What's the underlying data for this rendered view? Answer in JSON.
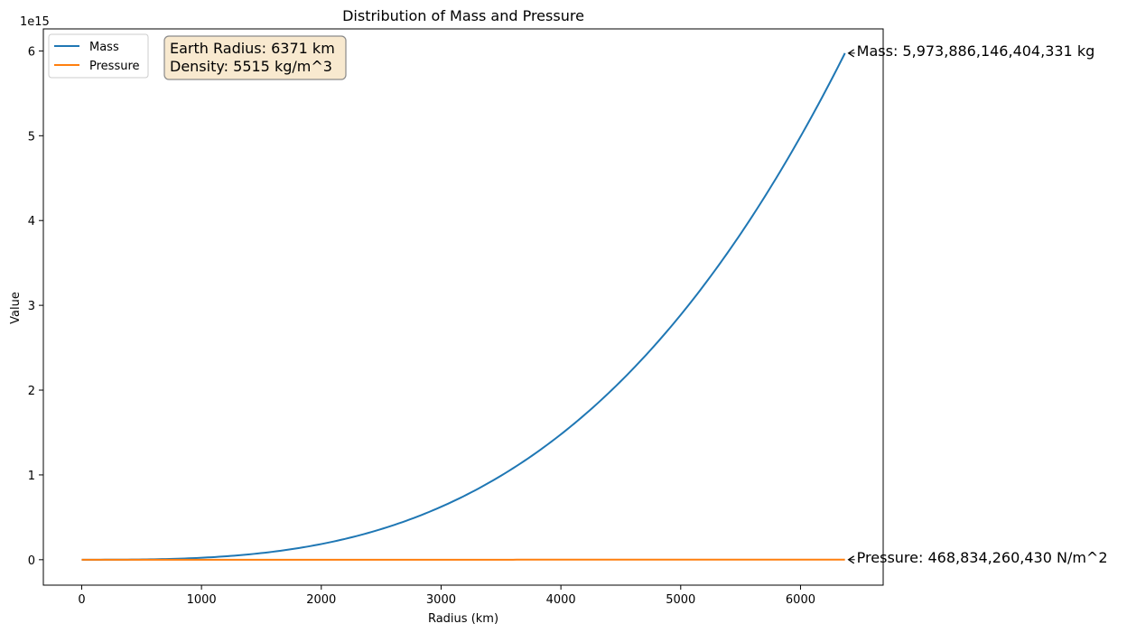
{
  "chart_data": {
    "type": "line",
    "title": "Distribution of Mass and Pressure",
    "xlabel": "Radius (km)",
    "ylabel": "Value",
    "y_offset_label": "1e15",
    "xlim": [
      -320,
      6690
    ],
    "ylim": [
      -0.3,
      6.26
    ],
    "y_scale_note": "values in units of 1e15",
    "x_ticks": [
      0,
      1000,
      2000,
      3000,
      4000,
      5000,
      6000
    ],
    "x_tick_labels": [
      "0",
      "1000",
      "2000",
      "3000",
      "4000",
      "5000",
      "6000"
    ],
    "y_ticks": [
      0,
      1,
      2,
      3,
      4,
      5,
      6
    ],
    "y_tick_labels": [
      "0",
      "1",
      "2",
      "3",
      "4",
      "5",
      "6"
    ],
    "grid": false,
    "legend_position": "top-left",
    "series": [
      {
        "name": "Mass",
        "color": "#1f77b4",
        "function": "cubic",
        "x_end": 6371,
        "y_end": 5.973886146404331
      },
      {
        "name": "Pressure",
        "color": "#ff7f0e",
        "function": "quadratic",
        "x_end": 6371,
        "y_end": 0.00046883426043
      }
    ],
    "annotations": [
      {
        "text": "Mass: 5,973,886,146,404,331 kg",
        "x": 6371,
        "y": 5.973886146404331
      },
      {
        "text": "Pressure: 468,834,260,430 N/m^2",
        "x": 6371,
        "y": 0.00046883426043
      }
    ],
    "info_box": {
      "line1": "Earth Radius: 6371 km",
      "line2": "Density: 5515 kg/m^3",
      "background": "#f8e9cf",
      "border": "#8a8a8a"
    }
  }
}
